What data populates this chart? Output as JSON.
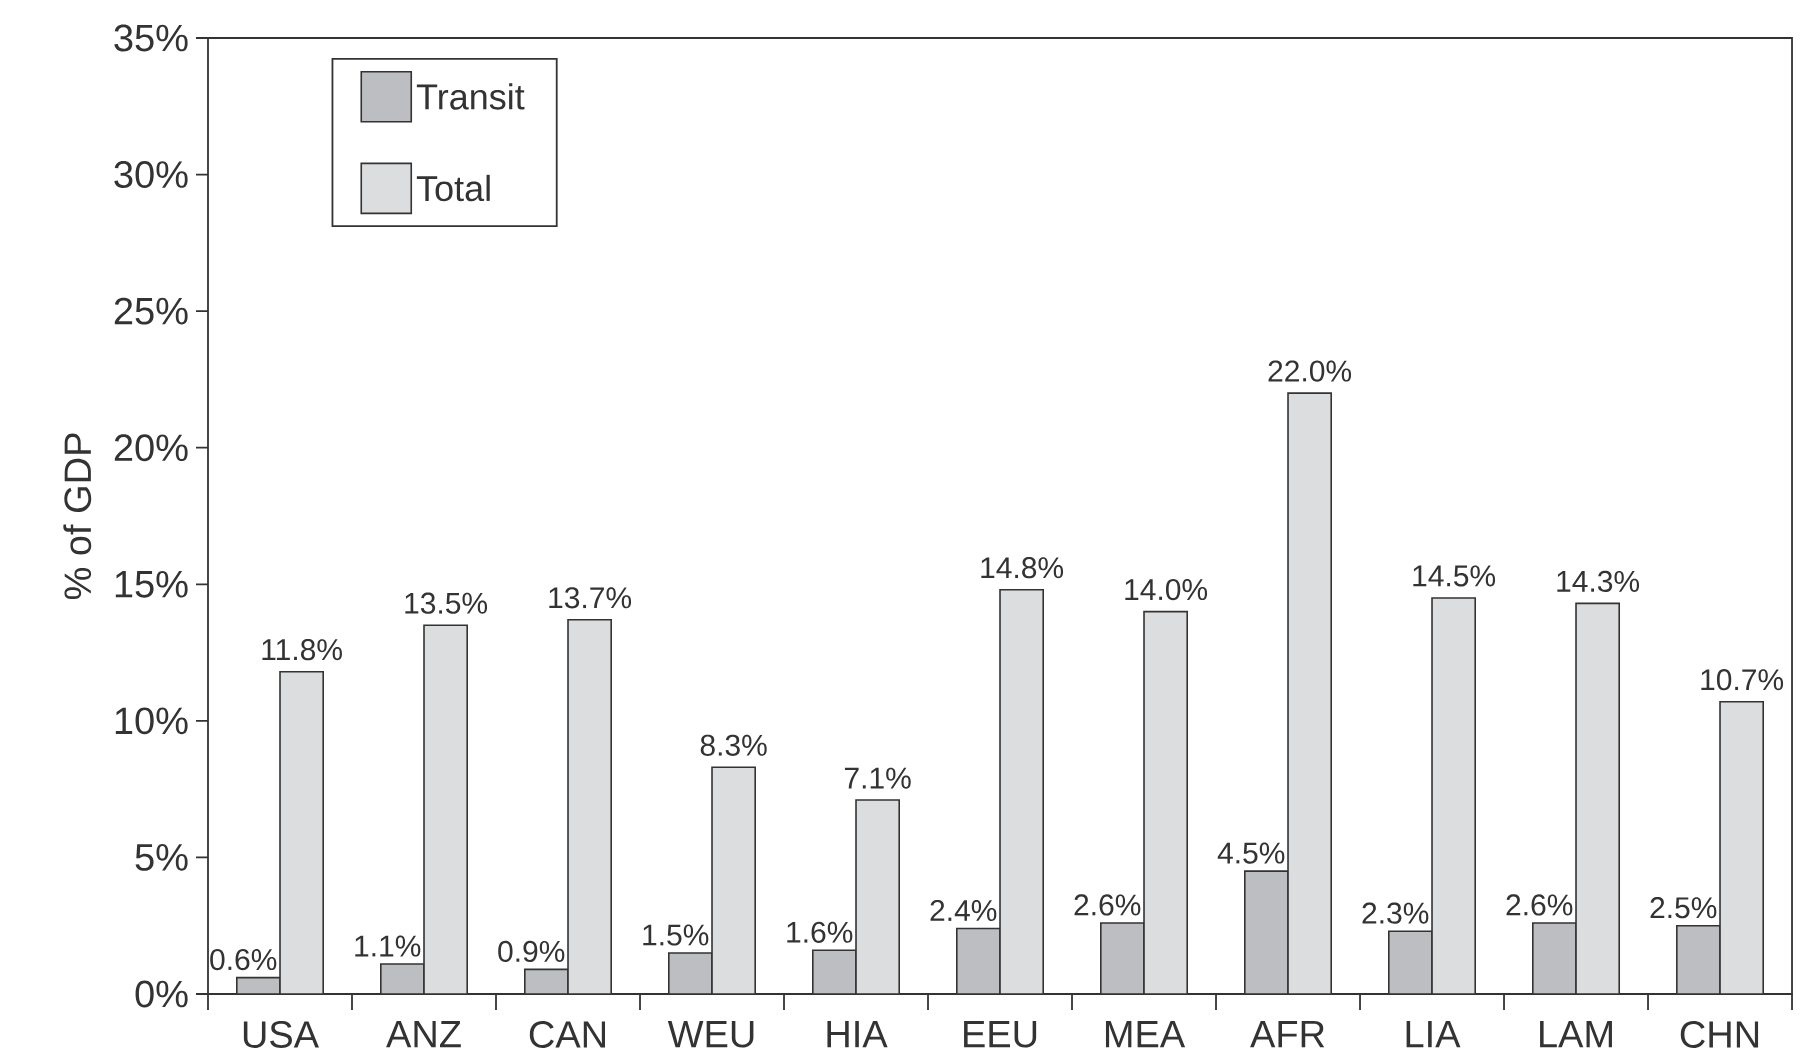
{
  "chart_data": {
    "type": "bar",
    "ylabel": "% of GDP",
    "categories": [
      "USA",
      "ANZ",
      "CAN",
      "WEU",
      "HIA",
      "EEU",
      "MEA",
      "AFR",
      "LIA",
      "LAM",
      "CHN"
    ],
    "series": [
      {
        "name": "Transit",
        "color": "#bdbec2",
        "values": [
          0.6,
          1.1,
          0.9,
          1.5,
          1.6,
          2.4,
          2.6,
          4.5,
          2.3,
          2.6,
          2.5
        ],
        "value_labels": [
          "0.6%",
          "1.1%",
          "0.9%",
          "1.5%",
          "1.6%",
          "2.4%",
          "2.6%",
          "4.5%",
          "2.3%",
          "2.6%",
          "2.5%"
        ]
      },
      {
        "name": "Total",
        "color": "#dcdddf",
        "values": [
          11.8,
          13.5,
          13.7,
          8.3,
          7.1,
          14.8,
          14.0,
          22.0,
          14.5,
          14.3,
          10.7
        ],
        "value_labels": [
          "11.8%",
          "13.5%",
          "13.7%",
          "8.3%",
          "7.1%",
          "14.8%",
          "14.0%",
          "22.0%",
          "14.5%",
          "14.3%",
          "10.7%"
        ]
      }
    ],
    "ylim": [
      0,
      35
    ],
    "yticks": [
      {
        "value": 0,
        "label": "0%"
      },
      {
        "value": 5,
        "label": "5%"
      },
      {
        "value": 10,
        "label": "10%"
      },
      {
        "value": 15,
        "label": "15%"
      },
      {
        "value": 20,
        "label": "20%"
      },
      {
        "value": 25,
        "label": "25%"
      },
      {
        "value": 30,
        "label": "30%"
      },
      {
        "value": 35,
        "label": "35%"
      }
    ],
    "legend": "top left"
  }
}
